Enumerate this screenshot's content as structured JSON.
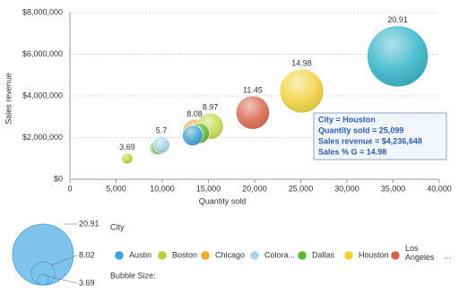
{
  "chart_data": {
    "type": "bubble",
    "x_label": "Quantity sold",
    "y_label": "Sales revenue",
    "xlim": [
      0,
      40000
    ],
    "ylim": [
      0,
      8000000
    ],
    "xticks": [
      0,
      {
        "value": 5000,
        "label": "5,000"
      },
      {
        "value": 10000,
        "label": "10,000"
      },
      {
        "value": 15000,
        "label": "15,000"
      },
      {
        "value": 20000,
        "label": "20,000"
      },
      {
        "value": 25000,
        "label": "25,000"
      },
      {
        "value": 30000,
        "label": "30,000"
      },
      {
        "value": 35000,
        "label": "35,000"
      },
      {
        "value": 40000,
        "label": "40,000"
      }
    ],
    "yticks": [
      {
        "value": 0,
        "label": "$0"
      },
      {
        "value": 2000000,
        "label": "$2,000,000"
      },
      {
        "value": 4000000,
        "label": "$4,000,000"
      },
      {
        "value": 6000000,
        "label": "$6,000,000"
      },
      {
        "value": 8000000,
        "label": "$8,000,000"
      }
    ],
    "grid": true,
    "series": [
      {
        "x": [
          6200,
          9300,
          9600,
          9900,
          13500,
          15200,
          14000,
          13300,
          19800,
          25099,
          35500
        ],
        "values": [
          1000000,
          1500000,
          1550000,
          1650000,
          2300000,
          2550000,
          2200000,
          2100000,
          3200000,
          4236648,
          5900000
        ],
        "sizes": [
          3.69,
          4.5,
          5.2,
          5.7,
          8.08,
          8.97,
          7,
          7,
          11.45,
          14.98,
          20.91
        ],
        "colors": [
          "#b5d334",
          "#cccccc",
          "#7cc540",
          "#a8d4ee",
          "#f0a830",
          "#c3d94a",
          "#5cb82e",
          "#3ba3d8",
          "#d9634a",
          "#f2d23b",
          "#2fb3c8"
        ],
        "value_labels": [
          "3.69",
          null,
          null,
          "5.7",
          "8.08",
          "8.97",
          null,
          null,
          "11.45",
          "14.98",
          "20.91"
        ]
      }
    ],
    "legend_title": "City",
    "legend": [
      {
        "name": "Austin",
        "color": "#3ba3d8"
      },
      {
        "name": "Boston",
        "color": "#b5d334"
      },
      {
        "name": "Chicago",
        "color": "#f0a830"
      },
      {
        "name": "Colora...",
        "color": "#a8d4ee"
      },
      {
        "name": "Dallas",
        "color": "#5cb82e"
      },
      {
        "name": "Houston",
        "color": "#f2d23b"
      },
      {
        "name": "Los Angeles",
        "color": "#d9634a"
      }
    ],
    "legend_more": "...",
    "size_legend": {
      "title": "Bubble Size:",
      "values": [
        20.91,
        8.02,
        3.69
      ],
      "color": "#7ec3ea"
    },
    "tooltip": [
      "City = Houston",
      "Quantity sold = 25,099",
      "Sales revenue = $4,236,648",
      "Sales % G = 14.98"
    ]
  }
}
